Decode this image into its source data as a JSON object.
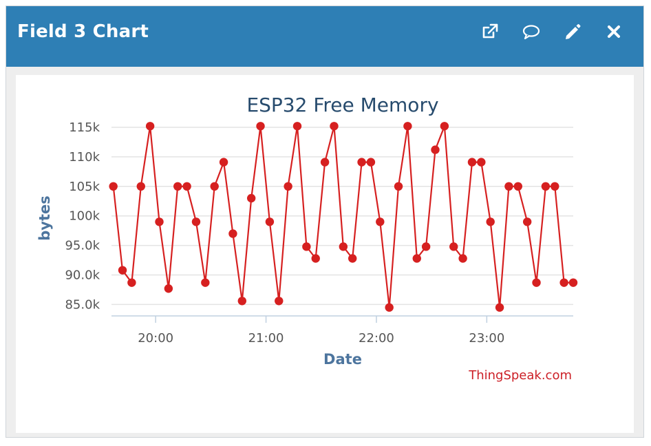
{
  "panel": {
    "title": "Field 3 Chart",
    "icons": [
      "external-link-icon",
      "comment-icon",
      "pencil-icon",
      "close-icon"
    ]
  },
  "colors": {
    "header": "#2e7fb5",
    "series": "#d62020",
    "title": "#274b6d",
    "axis_label": "#4d759e",
    "credit": "#cc1f26"
  },
  "chart_data": {
    "type": "line",
    "title": "ESP32 Free Memory",
    "xlabel": "Date",
    "ylabel": "bytes",
    "credit": "ThingSpeak.com",
    "ylim": [
      84000,
      115000
    ],
    "y_ticks": [
      {
        "value": 85000,
        "label": "85.0k"
      },
      {
        "value": 90000,
        "label": "90.0k"
      },
      {
        "value": 95000,
        "label": "95.0k"
      },
      {
        "value": 100000,
        "label": "100k"
      },
      {
        "value": 105000,
        "label": "105k"
      },
      {
        "value": 110000,
        "label": "110k"
      },
      {
        "value": 115000,
        "label": "115k"
      }
    ],
    "x_ticks": [
      {
        "value": "20:00",
        "label": "20:00"
      },
      {
        "value": "21:00",
        "label": "21:00"
      },
      {
        "value": "22:00",
        "label": "22:00"
      },
      {
        "value": "23:00",
        "label": "23:00"
      }
    ],
    "xlim": [
      "19:36",
      "23:47"
    ],
    "grid": true,
    "legend": "none",
    "series": [
      {
        "x": [
          "19:37",
          "19:42",
          "19:47",
          "19:52",
          "19:57",
          "20:02",
          "20:07",
          "20:12",
          "20:17",
          "20:22",
          "20:27",
          "20:32",
          "20:37",
          "20:42",
          "20:47",
          "20:52",
          "20:57",
          "21:02",
          "21:07",
          "21:12",
          "21:17",
          "21:22",
          "21:27",
          "21:32",
          "21:37",
          "21:42",
          "21:47",
          "21:52",
          "21:57",
          "22:02",
          "22:07",
          "22:12",
          "22:17",
          "22:22",
          "22:27",
          "22:32",
          "22:37",
          "22:42",
          "22:47",
          "22:52",
          "22:57",
          "23:02",
          "23:07",
          "23:12",
          "23:17",
          "23:22",
          "23:27",
          "23:32",
          "23:37",
          "23:42",
          "23:47"
        ],
        "values": [
          105000,
          90800,
          88700,
          105000,
          115200,
          99000,
          87700,
          105000,
          105000,
          99000,
          88700,
          105000,
          109100,
          97000,
          85600,
          103000,
          115200,
          99000,
          85600,
          105000,
          115200,
          94800,
          92800,
          109100,
          115200,
          94800,
          92800,
          109100,
          109100,
          99000,
          84500,
          105000,
          115200,
          92800,
          94800,
          111200,
          115200,
          94800,
          92800,
          109100,
          109100,
          99000,
          84500,
          105000,
          105000,
          99000,
          88700,
          105000,
          105000,
          88700,
          88700
        ]
      }
    ]
  }
}
